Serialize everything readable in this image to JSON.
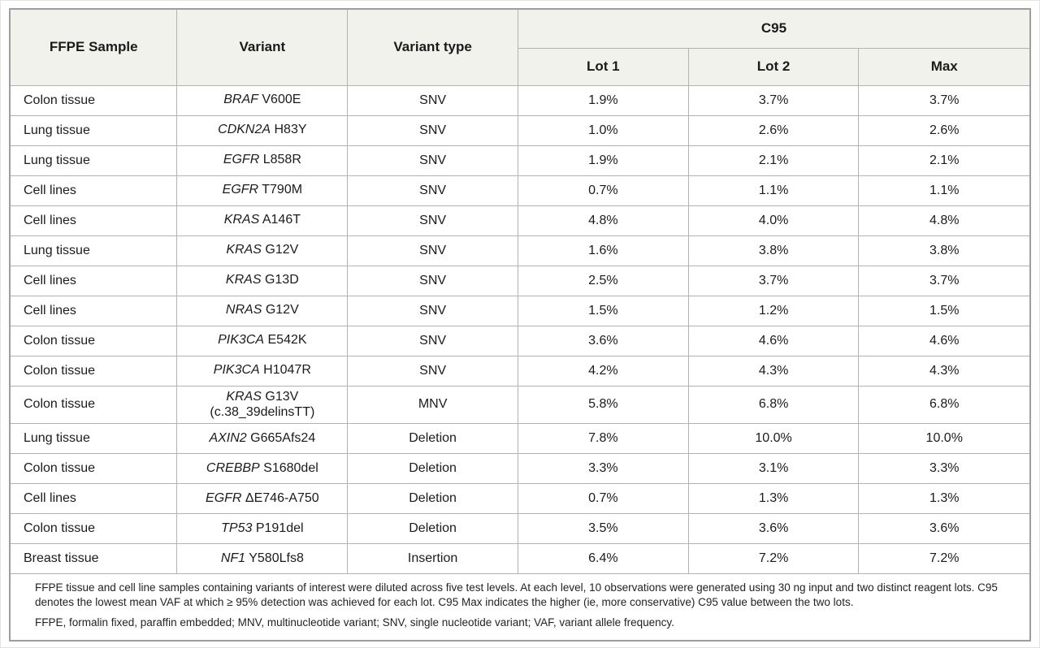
{
  "colors": {
    "header_bg": "#f2f2ed",
    "border_inner": "#b3b3b3",
    "border_outer": "#9e9e9e",
    "text": "#1b1b1b",
    "page_bg": "#ffffff"
  },
  "table": {
    "headers": {
      "ffpe_sample": "FFPE Sample",
      "variant": "Variant",
      "variant_type": "Variant type",
      "c95_group": "C95",
      "lot1": "Lot 1",
      "lot2": "Lot 2",
      "max": "Max"
    },
    "rows": [
      {
        "sample": "Colon tissue",
        "gene": "BRAF",
        "mutation": "V600E",
        "mutation_line2": "",
        "type": "SNV",
        "lot1": "1.9%",
        "lot2": "3.7%",
        "max": "3.7%"
      },
      {
        "sample": "Lung tissue",
        "gene": "CDKN2A",
        "mutation": "H83Y",
        "mutation_line2": "",
        "type": "SNV",
        "lot1": "1.0%",
        "lot2": "2.6%",
        "max": "2.6%"
      },
      {
        "sample": "Lung tissue",
        "gene": "EGFR",
        "mutation": "L858R",
        "mutation_line2": "",
        "type": "SNV",
        "lot1": "1.9%",
        "lot2": "2.1%",
        "max": "2.1%"
      },
      {
        "sample": "Cell lines",
        "gene": "EGFR",
        "mutation": "T790M",
        "mutation_line2": "",
        "type": "SNV",
        "lot1": "0.7%",
        "lot2": "1.1%",
        "max": "1.1%"
      },
      {
        "sample": "Cell lines",
        "gene": "KRAS",
        "mutation": "A146T",
        "mutation_line2": "",
        "type": "SNV",
        "lot1": "4.8%",
        "lot2": "4.0%",
        "max": "4.8%"
      },
      {
        "sample": "Lung tissue",
        "gene": "KRAS",
        "mutation": "G12V",
        "mutation_line2": "",
        "type": "SNV",
        "lot1": "1.6%",
        "lot2": "3.8%",
        "max": "3.8%"
      },
      {
        "sample": "Cell lines",
        "gene": "KRAS",
        "mutation": "G13D",
        "mutation_line2": "",
        "type": "SNV",
        "lot1": "2.5%",
        "lot2": "3.7%",
        "max": "3.7%"
      },
      {
        "sample": "Cell lines",
        "gene": "NRAS",
        "mutation": "G12V",
        "mutation_line2": "",
        "type": "SNV",
        "lot1": "1.5%",
        "lot2": "1.2%",
        "max": "1.5%"
      },
      {
        "sample": "Colon tissue",
        "gene": "PIK3CA",
        "mutation": "E542K",
        "mutation_line2": "",
        "type": "SNV",
        "lot1": "3.6%",
        "lot2": "4.6%",
        "max": "4.6%"
      },
      {
        "sample": "Colon tissue",
        "gene": "PIK3CA",
        "mutation": "H1047R",
        "mutation_line2": "",
        "type": "SNV",
        "lot1": "4.2%",
        "lot2": "4.3%",
        "max": "4.3%"
      },
      {
        "sample": "Colon tissue",
        "gene": "KRAS",
        "mutation": "G13V",
        "mutation_line2": "(c.38_39delinsTT)",
        "type": "MNV",
        "lot1": "5.8%",
        "lot2": "6.8%",
        "max": "6.8%"
      },
      {
        "sample": "Lung tissue",
        "gene": "AXIN2",
        "mutation": "G665Afs24",
        "mutation_line2": "",
        "type": "Deletion",
        "lot1": "7.8%",
        "lot2": "10.0%",
        "max": "10.0%"
      },
      {
        "sample": "Colon tissue",
        "gene": "CREBBP",
        "mutation": "S1680del",
        "mutation_line2": "",
        "type": "Deletion",
        "lot1": "3.3%",
        "lot2": "3.1%",
        "max": "3.3%"
      },
      {
        "sample": "Cell lines",
        "gene": "EGFR",
        "mutation": "ΔE746-A750",
        "mutation_line2": "",
        "type": "Deletion",
        "lot1": "0.7%",
        "lot2": "1.3%",
        "max": "1.3%"
      },
      {
        "sample": "Colon tissue",
        "gene": "TP53",
        "mutation": "P191del",
        "mutation_line2": "",
        "type": "Deletion",
        "lot1": "3.5%",
        "lot2": "3.6%",
        "max": "3.6%"
      },
      {
        "sample": "Breast tissue",
        "gene": "NF1",
        "mutation": "Y580Lfs8",
        "mutation_line2": "",
        "type": "Insertion",
        "lot1": "6.4%",
        "lot2": "7.2%",
        "max": "7.2%"
      }
    ],
    "footnotes": [
      "FFPE tissue and cell line samples containing variants of interest were diluted across five test levels. At each level, 10 observations were generated using 30 ng input and two distinct reagent lots. C95 denotes the lowest mean VAF at which ≥ 95% detection was achieved for each lot. C95 Max indicates the higher (ie, more conservative) C95 value between the two lots.",
      "FFPE, formalin fixed, paraffin embedded; MNV, multinucleotide variant; SNV, single nucleotide variant; VAF, variant allele frequency."
    ]
  }
}
